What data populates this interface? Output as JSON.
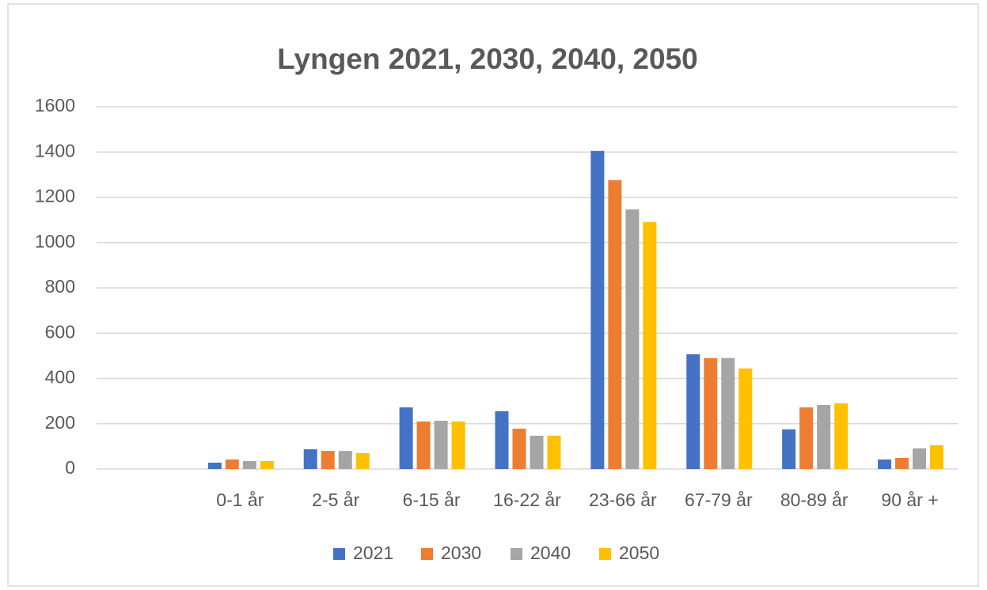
{
  "chart_data": {
    "type": "bar",
    "title": "Lyngen 2021, 2030, 2040, 2050",
    "categories": [
      null,
      "0-1 år",
      "2-5 år",
      "6-15 år",
      "16-22 år",
      "23-66 år",
      "67-79 år",
      "80-89 år",
      "90 år +"
    ],
    "series": [
      {
        "name": "2021",
        "color": "#4472c4",
        "values": [
          null,
          28,
          87,
          272,
          255,
          1405,
          507,
          175,
          42
        ]
      },
      {
        "name": "2030",
        "color": "#ed7d31",
        "values": [
          null,
          42,
          80,
          210,
          178,
          1276,
          490,
          272,
          49
        ]
      },
      {
        "name": "2040",
        "color": "#a5a5a5",
        "values": [
          null,
          35,
          80,
          213,
          147,
          1147,
          490,
          283,
          91
        ]
      },
      {
        "name": "2050",
        "color": "#ffc000",
        "values": [
          null,
          35,
          70,
          210,
          147,
          1091,
          444,
          290,
          105
        ]
      }
    ],
    "ylim": [
      0,
      1600
    ],
    "yticks": [
      0,
      200,
      400,
      600,
      800,
      1000,
      1200,
      1400,
      1600
    ],
    "grid": true,
    "legend": "bottom"
  }
}
